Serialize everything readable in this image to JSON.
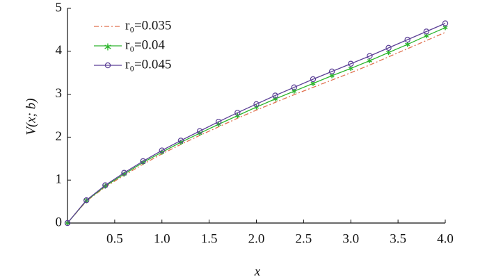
{
  "chart_data": {
    "type": "line",
    "xlabel": "x",
    "ylabel": "V(x; b)",
    "x": [
      0,
      0.2,
      0.4,
      0.6,
      0.8,
      1.0,
      1.2,
      1.4,
      1.6,
      1.8,
      2.0,
      2.2,
      2.4,
      2.6,
      2.8,
      3.0,
      3.2,
      3.4,
      3.6,
      3.8,
      4.0
    ],
    "series": [
      {
        "name": "r₀=0.035",
        "color": "#e0714f",
        "dash": "7 3 2 3",
        "marker": "none",
        "values": [
          0,
          0.51,
          0.84,
          1.11,
          1.37,
          1.61,
          1.83,
          2.04,
          2.24,
          2.44,
          2.63,
          2.81,
          2.99,
          3.16,
          3.33,
          3.5,
          3.68,
          3.87,
          4.06,
          4.25,
          4.44
        ]
      },
      {
        "name": "r₀=0.04",
        "color": "#2db52d",
        "marker": "star",
        "values": [
          0,
          0.52,
          0.86,
          1.14,
          1.41,
          1.65,
          1.88,
          2.09,
          2.3,
          2.5,
          2.7,
          2.89,
          3.07,
          3.25,
          3.43,
          3.6,
          3.78,
          3.97,
          4.16,
          4.36,
          4.55
        ]
      },
      {
        "name": "r₀=0.045",
        "color": "#5b3f96",
        "marker": "circle",
        "values": [
          0,
          0.53,
          0.88,
          1.17,
          1.44,
          1.69,
          1.92,
          2.14,
          2.36,
          2.57,
          2.77,
          2.97,
          3.16,
          3.35,
          3.53,
          3.71,
          3.89,
          4.08,
          4.27,
          4.46,
          4.65
        ]
      }
    ],
    "xlim": [
      0,
      4
    ],
    "xticks": [
      0.5,
      {
        "value": 1,
        "label": "1.0"
      },
      1.5,
      {
        "value": 2,
        "label": "2.0"
      },
      2.5,
      {
        "value": 3,
        "label": "3.0"
      },
      3.5,
      {
        "value": 4,
        "label": "4.0"
      }
    ],
    "ylim": [
      0,
      5
    ],
    "yticks": [
      0,
      1,
      2,
      3,
      4,
      5
    ],
    "legend": "upper left"
  }
}
